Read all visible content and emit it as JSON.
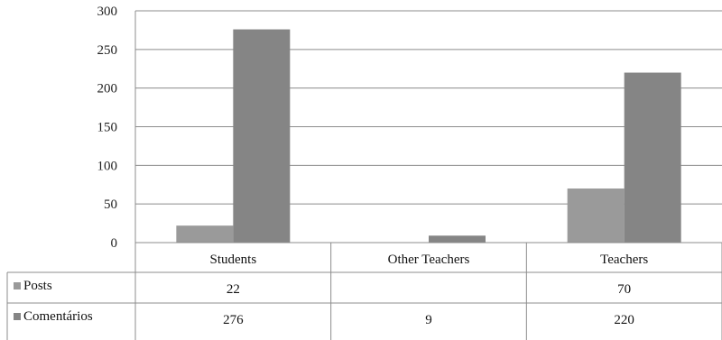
{
  "chart_data": {
    "type": "bar",
    "categories": [
      "Students",
      "Other Teachers",
      "Teachers"
    ],
    "series": [
      {
        "name": "Posts",
        "values": [
          22,
          null,
          70
        ]
      },
      {
        "name": "Comentários",
        "values": [
          276,
          9,
          220
        ]
      }
    ],
    "table_cells": [
      [
        "22",
        "",
        "70"
      ],
      [
        "276",
        "9",
        "220"
      ]
    ],
    "ylim": [
      0,
      300
    ],
    "yticks": [
      0,
      50,
      100,
      150,
      200,
      250,
      300
    ],
    "grid": true,
    "legend": "data-table",
    "colors": {
      "Posts": "#9a9a9a",
      "Comentários": "#858585"
    }
  }
}
